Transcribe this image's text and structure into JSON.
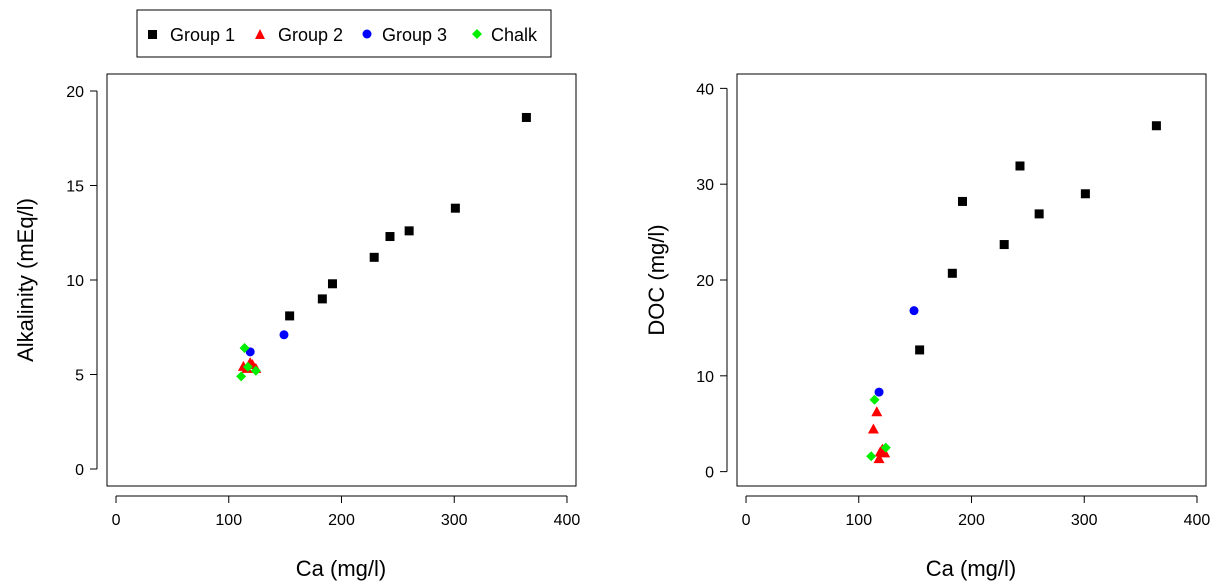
{
  "legend": {
    "entries": [
      {
        "label": "Group 1",
        "marker": "square",
        "color": "#000000"
      },
      {
        "label": "Group 2",
        "marker": "triangle",
        "color": "#ff0000"
      },
      {
        "label": "Group 3",
        "marker": "circle",
        "color": "#0000ff"
      },
      {
        "label": "Chalk",
        "marker": "diamond",
        "color": "#00ee00"
      }
    ]
  },
  "chart_data": [
    {
      "type": "scatter",
      "title": "",
      "xlabel": "Ca (mg/l)",
      "ylabel": "Alkalinity (mEq/l)",
      "xlim": [
        -8,
        408
      ],
      "ylim": [
        -0.9,
        20.9
      ],
      "xticks": [
        0,
        100,
        200,
        300,
        400
      ],
      "yticks": [
        0,
        5,
        10,
        15,
        20
      ],
      "grid": false,
      "series": [
        {
          "name": "Group 1",
          "marker": "square",
          "color": "#000000",
          "points": [
            [
              154,
              8.1
            ],
            [
              183,
              9.0
            ],
            [
              192,
              9.8
            ],
            [
              229,
              11.2
            ],
            [
              243,
              12.3
            ],
            [
              260,
              12.6
            ],
            [
              301,
              13.8
            ],
            [
              364,
              18.6
            ]
          ]
        },
        {
          "name": "Group 2",
          "marker": "triangle",
          "color": "#ff0000",
          "points": [
            [
              113,
              5.4
            ],
            [
              116,
              5.3
            ],
            [
              119,
              5.6
            ],
            [
              121,
              5.5
            ],
            [
              124,
              5.3
            ]
          ]
        },
        {
          "name": "Group 3",
          "marker": "circle",
          "color": "#0000ff",
          "points": [
            [
              119,
              6.2
            ],
            [
              149,
              7.1
            ]
          ]
        },
        {
          "name": "Chalk",
          "marker": "diamond",
          "color": "#00ee00",
          "points": [
            [
              111,
              4.9
            ],
            [
              114,
              6.4
            ],
            [
              117,
              5.4
            ],
            [
              124,
              5.2
            ]
          ]
        }
      ]
    },
    {
      "type": "scatter",
      "title": "",
      "xlabel": "Ca (mg/l)",
      "ylabel": "DOC (mg/l)",
      "xlim": [
        -8,
        408
      ],
      "ylim": [
        -1.5,
        41.5
      ],
      "xticks": [
        0,
        100,
        200,
        300,
        400
      ],
      "yticks": [
        0,
        10,
        20,
        30,
        40
      ],
      "grid": false,
      "series": [
        {
          "name": "Group 1",
          "marker": "square",
          "color": "#000000",
          "points": [
            [
              154,
              12.7
            ],
            [
              183,
              20.7
            ],
            [
              192,
              28.2
            ],
            [
              229,
              23.7
            ],
            [
              243,
              31.9
            ],
            [
              260,
              26.9
            ],
            [
              301,
              29.0
            ],
            [
              364,
              36.1
            ]
          ]
        },
        {
          "name": "Group 2",
          "marker": "triangle",
          "color": "#ff0000",
          "points": [
            [
              113,
              4.4
            ],
            [
              116,
              6.2
            ],
            [
              118,
              1.3
            ],
            [
              119,
              2.0
            ],
            [
              121,
              2.3
            ],
            [
              123,
              1.9
            ]
          ]
        },
        {
          "name": "Group 3",
          "marker": "circle",
          "color": "#0000ff",
          "points": [
            [
              149,
              16.8
            ],
            [
              118,
              8.3
            ]
          ]
        },
        {
          "name": "Chalk",
          "marker": "diamond",
          "color": "#00ee00",
          "points": [
            [
              111,
              1.6
            ],
            [
              114,
              7.5
            ],
            [
              124,
              2.5
            ]
          ]
        }
      ]
    }
  ]
}
